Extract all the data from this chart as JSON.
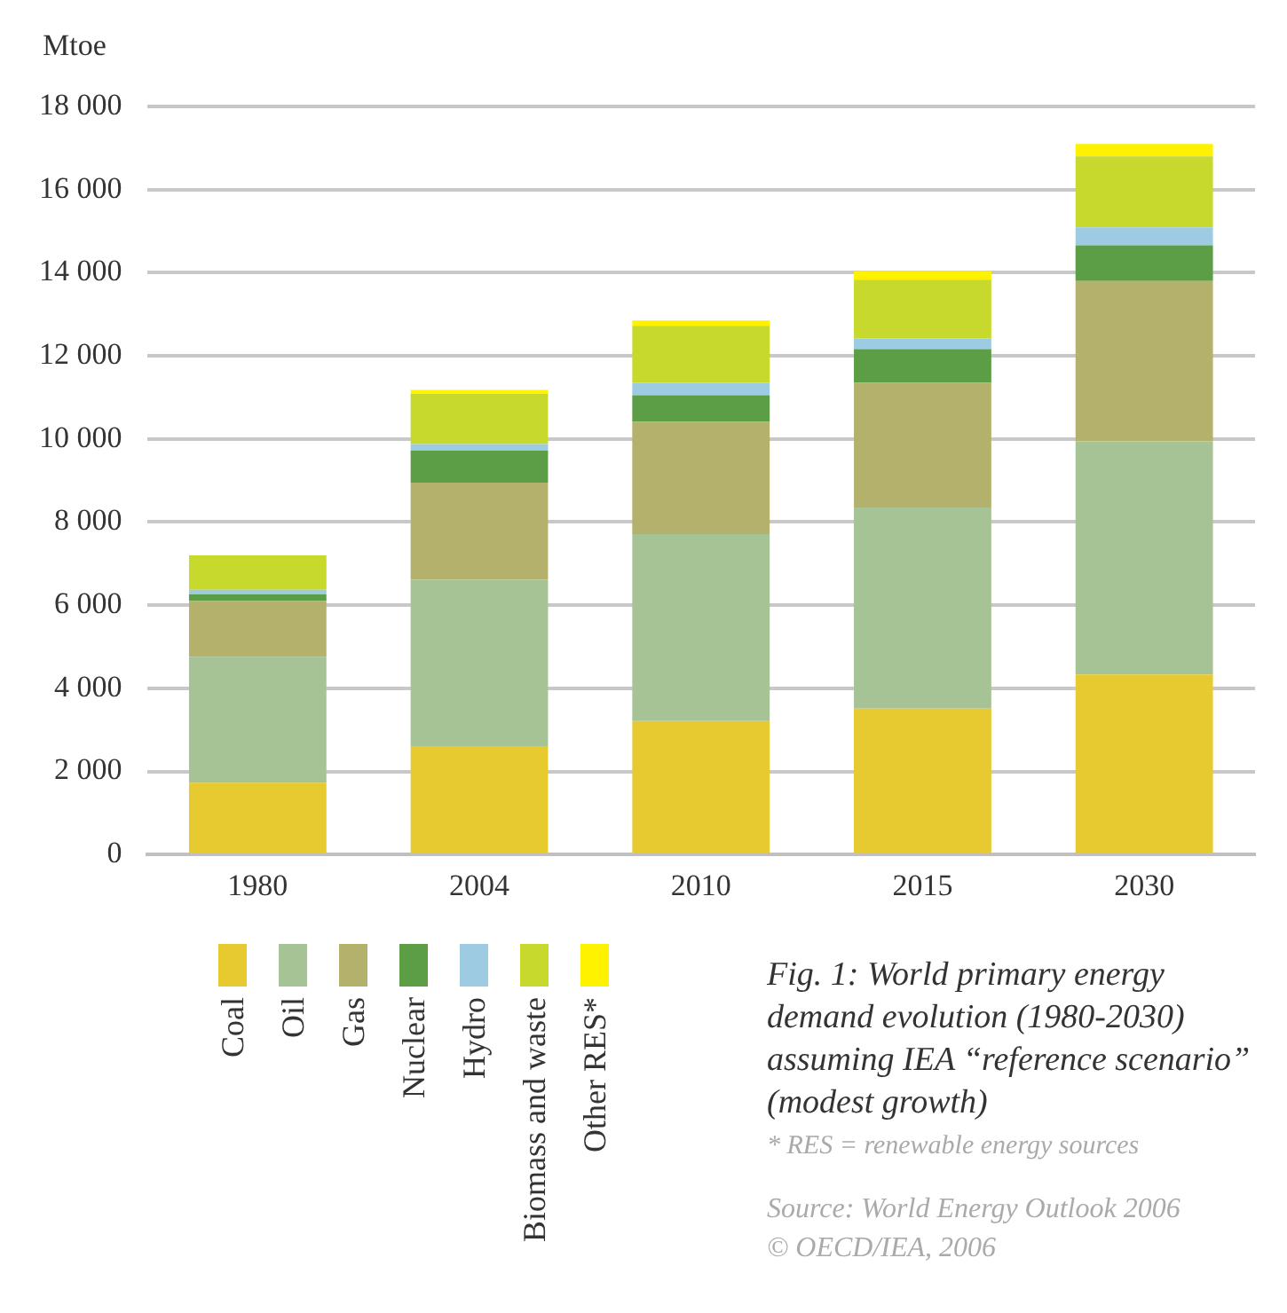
{
  "chart_data": {
    "type": "bar",
    "stacked": true,
    "ylabel": "Mtoe",
    "title": "Fig. 1: World primary energy demand evolution (1980-2030) assuming IEA “reference scenario” (modest growth)",
    "annotations": [
      "* RES = renewable energy sources",
      "Source: World Energy Outlook 2006",
      "© OECD/IEA, 2006"
    ],
    "categories": [
      "1980",
      "2004",
      "2010",
      "2015",
      "2030"
    ],
    "series": [
      {
        "name": "Coal",
        "color": "#e6ca30",
        "values": [
          1730,
          2610,
          3210,
          3510,
          4330
        ]
      },
      {
        "name": "Oil",
        "color": "#a6c396",
        "values": [
          3030,
          4000,
          4500,
          4840,
          5610
        ]
      },
      {
        "name": "Gas",
        "color": "#b4b16d",
        "values": [
          1340,
          2340,
          2700,
          3000,
          3860
        ]
      },
      {
        "name": "Nuclear",
        "color": "#5b9e45",
        "values": [
          160,
          770,
          640,
          810,
          860
        ]
      },
      {
        "name": "Hydro",
        "color": "#9ccbe2",
        "values": [
          110,
          160,
          300,
          260,
          430
        ]
      },
      {
        "name": "Biomass and waste",
        "color": "#c8d92e",
        "values": [
          830,
          1210,
          1370,
          1410,
          1710
        ]
      },
      {
        "name": "Other RES*",
        "color": "#fff200",
        "values": [
          0,
          90,
          130,
          210,
          300
        ]
      }
    ],
    "ylim": [
      0,
      18000
    ],
    "yticks": [
      {
        "value": 0,
        "label": "0"
      },
      {
        "value": 2000,
        "label": "2 000"
      },
      {
        "value": 4000,
        "label": "4 000"
      },
      {
        "value": 6000,
        "label": "6 000"
      },
      {
        "value": 8000,
        "label": "8 000"
      },
      {
        "value": 10000,
        "label": "10 000"
      },
      {
        "value": 12000,
        "label": "12 000"
      },
      {
        "value": 14000,
        "label": "14 000"
      },
      {
        "value": 16000,
        "label": "16 000"
      },
      {
        "value": 18000,
        "label": "18 000"
      }
    ],
    "grid": "y",
    "legend": "bottom left"
  }
}
